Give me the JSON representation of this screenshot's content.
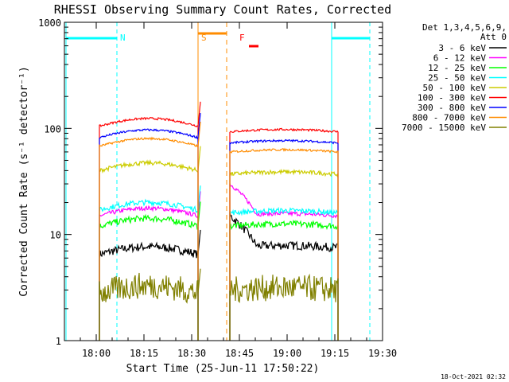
{
  "chart_data": {
    "type": "line",
    "title": "RHESSI Observing Summary Count Rates, Corrected",
    "xlabel": "Start Time (25-Jun-11 17:50:22)",
    "ylabel": "Corrected Count Rate (s⁻¹ detector⁻¹)",
    "ylim": [
      1,
      1000
    ],
    "yscale": "log",
    "xlim_minutes": [
      -10,
      90
    ],
    "xticks": [
      {
        "label": "18:00",
        "value": 0
      },
      {
        "label": "18:15",
        "value": 15
      },
      {
        "label": "18:30",
        "value": 30
      },
      {
        "label": "18:45",
        "value": 45
      },
      {
        "label": "19:00",
        "value": 60
      },
      {
        "label": "19:15",
        "value": 75
      },
      {
        "label": "19:30",
        "value": 90
      }
    ],
    "yticks": [
      {
        "label": "1",
        "value": 1
      },
      {
        "label": "10",
        "value": 10
      },
      {
        "label": "100",
        "value": 100
      },
      {
        "label": "1000",
        "value": 1000
      }
    ],
    "legend_header": [
      "Det 1,3,4,5,6,9,",
      "Att 0"
    ],
    "legend_position": "top-right",
    "series": [
      {
        "name": "3 - 6 keV",
        "color": "#000000",
        "level1": 6.5,
        "level2": 7.5,
        "amp": 0.08
      },
      {
        "name": "6 - 12 keV",
        "color": "#ff00ff",
        "level1": 15,
        "level2": 15,
        "amp": 0.04
      },
      {
        "name": "12 - 25 keV",
        "color": "#00ff00",
        "level1": 12,
        "level2": 12,
        "amp": 0.06
      },
      {
        "name": "25 - 50 keV",
        "color": "#00ffff",
        "level1": 17,
        "level2": 16,
        "amp": 0.05
      },
      {
        "name": "50 - 100 keV",
        "color": "#cccc00",
        "level1": 40,
        "level2": 37,
        "amp": 0.04
      },
      {
        "name": "100 - 300 keV",
        "color": "#ff0000",
        "level1": 105,
        "level2": 93,
        "amp": 0.02
      },
      {
        "name": "300 - 800 keV",
        "color": "#0000ff",
        "level1": 82,
        "level2": 73,
        "amp": 0.02
      },
      {
        "name": "800 - 7000 keV",
        "color": "#ff8c00",
        "level1": 68,
        "level2": 60,
        "amp": 0.02
      },
      {
        "name": "7000 - 15000 keV",
        "color": "#808000",
        "level1": 2.8,
        "level2": 3.0,
        "amp": 0.25
      }
    ],
    "segments": [
      {
        "start": 1,
        "end": 32
      },
      {
        "start": 42,
        "end": 76
      }
    ],
    "annotations": [
      {
        "label": "N",
        "color": "#00ffff",
        "x": 6.5
      },
      {
        "label": "S",
        "color": "#ff8c00",
        "x": 32
      },
      {
        "label": "F",
        "color": "#ff0000",
        "x": 44
      }
    ],
    "night_intervals": [
      {
        "start": -9.5,
        "end": 6.5
      },
      {
        "start": 74,
        "end": 86
      }
    ],
    "saa_interval": {
      "start": 32,
      "end": 41
    },
    "flare_interval": {
      "start": 48,
      "end": 51
    }
  },
  "footer": {
    "timestamp": "18-Oct-2021 02:32"
  }
}
